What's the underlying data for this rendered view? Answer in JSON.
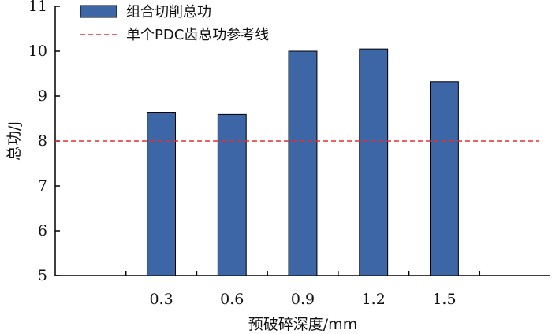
{
  "chart_data": {
    "type": "bar",
    "categories": [
      "0.3",
      "0.6",
      "0.9",
      "1.2",
      "1.5"
    ],
    "series": [
      {
        "name": "组合切削总功",
        "values": [
          8.64,
          8.59,
          10.0,
          10.05,
          9.32
        ],
        "color": "#3d66a6"
      }
    ],
    "reference_line": {
      "name": "单个PDC齿总功参考线",
      "value": 8.0,
      "color": "#e03030",
      "style": "dashed"
    },
    "xlabel": "预破碎深度/mm",
    "ylabel": "总功/J",
    "ylim": [
      5,
      11
    ],
    "yticks": [
      "5",
      "6",
      "7",
      "8",
      "9",
      "10",
      "11"
    ],
    "grid": false,
    "legend_position": "top-left"
  }
}
